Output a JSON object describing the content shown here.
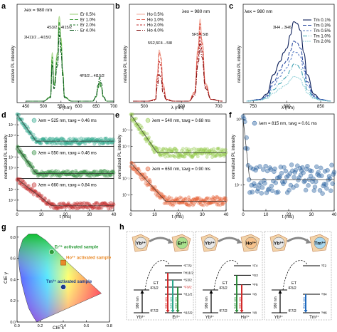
{
  "panels": {
    "a": {
      "letter": "a",
      "label": "λex = 980 nm",
      "ylabel": "relative PL intensity",
      "xlabel": "λ (nm)",
      "xticks": [
        "450",
        "500",
        "550",
        "600",
        "650",
        "700"
      ],
      "legend": [
        "Er 0.5%",
        "Er 1.0%",
        "Er 2.0%",
        "Er 4.0%"
      ],
      "colors": [
        "#9fd27e",
        "#3f9f3a",
        "#1f7a2a",
        "#0f5a20"
      ],
      "annotations": [
        "2H11/2→4I15/2",
        "4S3/2→4I15/2",
        "4F9/2→4I15/2"
      ],
      "chart_data": {
        "type": "line",
        "xlim": [
          425,
          700
        ],
        "x": [
          450,
          500,
          520,
          525,
          530,
          540,
          545,
          550,
          555,
          560,
          580,
          600,
          640,
          650,
          655,
          660,
          665,
          670,
          680,
          700
        ],
        "series": [
          {
            "name": "Er 0.5%",
            "values": [
              0,
              0,
              0.05,
              0.55,
              0.2,
              0.55,
              0.96,
              0.72,
              0.35,
              0.05,
              0,
              0,
              0,
              0.05,
              0.15,
              0.22,
              0.16,
              0.05,
              0,
              0
            ]
          },
          {
            "name": "Er 1.0%",
            "values": [
              0,
              0,
              0.05,
              0.5,
              0.18,
              0.5,
              0.9,
              0.66,
              0.32,
              0.05,
              0,
              0,
              0,
              0.05,
              0.14,
              0.2,
              0.15,
              0.05,
              0,
              0
            ]
          },
          {
            "name": "Er 2.0%",
            "values": [
              0,
              0,
              0.04,
              0.44,
              0.15,
              0.45,
              0.82,
              0.6,
              0.3,
              0.04,
              0,
              0,
              0,
              0.05,
              0.15,
              0.22,
              0.16,
              0.05,
              0,
              0
            ]
          },
          {
            "name": "Er 4.0%",
            "values": [
              0,
              0,
              0.04,
              0.4,
              0.14,
              0.4,
              0.75,
              0.55,
              0.28,
              0.04,
              0,
              0,
              0,
              0.06,
              0.18,
              0.27,
              0.2,
              0.06,
              0,
              0
            ]
          }
        ]
      }
    },
    "b": {
      "letter": "b",
      "label": "λex = 980 nm",
      "ylabel": "relative PL intensity",
      "xlabel": "λ (nm)",
      "xticks": [
        "500",
        "600",
        "700"
      ],
      "legend": [
        "Ho 0.5%",
        "Ho 1.0%",
        "Ho 2.0%",
        "Ho 4.0%"
      ],
      "colors": [
        "#f3b0a2",
        "#e06050",
        "#c02828",
        "#800f0f"
      ],
      "annotations": [
        "5S2,5F4→5I8",
        "5F5→5I8"
      ],
      "chart_data": {
        "type": "line",
        "xlim": [
          460,
          720
        ],
        "x": [
          470,
          510,
          530,
          535,
          540,
          545,
          550,
          560,
          580,
          620,
          635,
          645,
          650,
          655,
          665,
          680,
          710
        ],
        "series": [
          {
            "name": "Ho 0.5%",
            "values": [
              0,
              0,
              0.02,
              0.3,
              0.58,
              0.5,
              0.2,
              0.02,
              0,
              0,
              0.1,
              0.62,
              0.93,
              0.7,
              0.2,
              0.02,
              0
            ]
          },
          {
            "name": "Ho 1.0%",
            "values": [
              0,
              0,
              0.02,
              0.28,
              0.55,
              0.48,
              0.18,
              0.02,
              0,
              0,
              0.1,
              0.58,
              0.88,
              0.66,
              0.18,
              0.02,
              0
            ]
          },
          {
            "name": "Ho 2.0%",
            "values": [
              0,
              0,
              0.02,
              0.22,
              0.45,
              0.4,
              0.15,
              0.02,
              0,
              0,
              0.08,
              0.5,
              0.78,
              0.58,
              0.16,
              0.02,
              0
            ]
          },
          {
            "name": "Ho 4.0%",
            "values": [
              0,
              0,
              0.01,
              0.16,
              0.3,
              0.27,
              0.1,
              0.01,
              0,
              0,
              0.06,
              0.42,
              0.65,
              0.5,
              0.14,
              0.02,
              0
            ]
          }
        ]
      }
    },
    "c": {
      "letter": "c",
      "label": "λex = 980 nm",
      "ylabel": "relative PL intensity",
      "xlabel": "λ (nm)",
      "xticks": [
        "750",
        "800",
        "850"
      ],
      "legend": [
        "Tm 0.1%",
        "Tm 0.3%",
        "Tm 0.5%",
        "Tm 1.0%",
        "Tm 2.0%"
      ],
      "colors": [
        "#0c1f5a",
        "#2a4aa0",
        "#5c7fc6",
        "#3aa0b0",
        "#8fd0d8"
      ],
      "annotations": [
        "3H4→3H6"
      ],
      "chart_data": {
        "type": "line",
        "xlim": [
          735,
          870
        ],
        "x": [
          740,
          760,
          770,
          780,
          790,
          795,
          800,
          805,
          810,
          815,
          820,
          825,
          830,
          840,
          850,
          865
        ],
        "series": [
          {
            "name": "Tm 0.1%",
            "values": [
              0,
              0.02,
              0.08,
              0.3,
              0.45,
              0.55,
              0.6,
              0.75,
              0.9,
              0.88,
              0.8,
              0.55,
              0.3,
              0.08,
              0.02,
              0
            ]
          },
          {
            "name": "Tm 0.3%",
            "values": [
              0,
              0.02,
              0.06,
              0.22,
              0.35,
              0.42,
              0.46,
              0.57,
              0.68,
              0.66,
              0.6,
              0.42,
              0.22,
              0.06,
              0.02,
              0
            ]
          },
          {
            "name": "Tm 0.5%",
            "values": [
              0,
              0.02,
              0.05,
              0.18,
              0.28,
              0.34,
              0.38,
              0.47,
              0.56,
              0.55,
              0.5,
              0.35,
              0.18,
              0.05,
              0.02,
              0
            ]
          },
          {
            "name": "Tm 1.0%",
            "values": [
              0,
              0.01,
              0.04,
              0.13,
              0.2,
              0.25,
              0.28,
              0.35,
              0.42,
              0.41,
              0.37,
              0.26,
              0.13,
              0.04,
              0.01,
              0
            ]
          },
          {
            "name": "Tm 2.0%",
            "values": [
              0,
              0.01,
              0.03,
              0.09,
              0.14,
              0.17,
              0.19,
              0.24,
              0.28,
              0.27,
              0.25,
              0.17,
              0.09,
              0.03,
              0.01,
              0
            ]
          }
        ]
      }
    },
    "d": {
      "letter": "d",
      "ylabel": "normalized PL intensity",
      "xlabel": "t (ms)",
      "xticks": [
        "0",
        "10",
        "20",
        "30",
        "40"
      ],
      "yticks": [
        "10⁻¹",
        "10⁻²",
        "10⁻³"
      ],
      "rows": [
        {
          "legend": "λem = 525 nm, τavg = 0.46 ms",
          "color": "#2aa58a",
          "tau": 0.46,
          "floor": 0.003
        },
        {
          "legend": "λem = 550 nm, τavg = 0.46 ms",
          "color": "#2e8c3c",
          "tau": 0.46,
          "floor": 0.003
        },
        {
          "legend": "λem = 660 nm, τavg = 0.84 ms",
          "color": "#c42a2a",
          "tau": 0.84,
          "floor": 0.003
        }
      ],
      "chart_data": {
        "type": "scatter",
        "xlim": [
          0,
          40
        ],
        "ylim": [
          0.001,
          1
        ],
        "yscale": "log"
      }
    },
    "e": {
      "letter": "e",
      "ylabel": "normalized PL intensity",
      "xlabel": "t (ms)",
      "xticks": [
        "0",
        "10",
        "20",
        "30",
        "40"
      ],
      "yticks": [
        "10⁻¹",
        "10⁻²",
        "10⁻³"
      ],
      "rows": [
        {
          "legend": "λem = 540 nm, τavg = 0.68 ms",
          "color": "#8cc63f",
          "tau": 0.68,
          "floor": 0.004
        },
        {
          "legend": "λem = 650 nm, τavg = 0.90 ms",
          "color": "#e4582a",
          "tau": 0.9,
          "floor": 0.004
        }
      ],
      "chart_data": {
        "type": "scatter",
        "xlim": [
          0,
          40
        ],
        "ylim": [
          0.001,
          1
        ],
        "yscale": "log"
      }
    },
    "f": {
      "letter": "f",
      "ylabel": "normalized PL intensity",
      "xlabel": "t (ms)",
      "xticks": [
        "0",
        "10",
        "20",
        "30",
        "40"
      ],
      "yticks": [
        "10⁰",
        "10⁻¹"
      ],
      "legend": "λem = 815 nm, τavg = 0.61 ms",
      "color": "#1f5a9c",
      "chart_data": {
        "type": "scatter",
        "xlim": [
          0,
          40
        ],
        "ylim": [
          0.04,
          1.2
        ],
        "yscale": "log",
        "tau": 0.61,
        "floor": 0.12
      }
    },
    "g": {
      "letter": "g",
      "xlabel": "CIE x",
      "ylabel": "CIE y",
      "xticks": [
        "0.0",
        "0.2",
        "0.4",
        "0.6",
        "0.8"
      ],
      "yticks": [
        "0.0",
        "0.2",
        "0.4",
        "0.6",
        "0.8"
      ],
      "points": [
        {
          "label": "Er³⁺ activated sample",
          "x": 0.3,
          "y": 0.66,
          "color": "#2e9c3c"
        },
        {
          "label": "Ho³⁺ activated sample",
          "x": 0.4,
          "y": 0.56,
          "color": "#e88a2a"
        },
        {
          "label": "Tm³⁺ activated sample",
          "x": 0.4,
          "y": 0.33,
          "color": "#1f3c8c"
        }
      ],
      "chart_data": {
        "type": "scatter",
        "xlim": [
          0,
          0.8
        ],
        "ylim": [
          0,
          0.9
        ]
      }
    },
    "h": {
      "letter": "h",
      "schemes": [
        {
          "donor": "Yb³⁺",
          "acceptor": "Er³⁺",
          "acceptor_color": "#a8e08c",
          "et": "ET",
          "donor_levels": [
            "²F5/2",
            "²F7/2"
          ],
          "acceptor_levels": [
            "⁴F7/2",
            "²H11/2",
            "⁴S3/2",
            "⁴F9/2",
            "⁴I11/2",
            "⁴I15/2"
          ],
          "excitation": "980 nm",
          "emissions": [
            {
              "label": "660 nm",
              "color": "#d22a2a"
            },
            {
              "label": "525 nm",
              "color": "#2aa58a"
            },
            {
              "label": "550 nm",
              "color": "#2e8c3c"
            }
          ],
          "bottom_labels": [
            "Yb³⁺",
            "Er³⁺"
          ]
        },
        {
          "donor": "Yb³⁺",
          "acceptor": "Ho³⁺",
          "acceptor_color": "#f6c28c",
          "et": "ET",
          "donor_levels": [
            "²F5/2",
            "²F7/2"
          ],
          "acceptor_levels": [
            "⁵F4",
            "⁵S2",
            "⁵F5",
            "⁵I6",
            "⁵I8"
          ],
          "excitation": "980 nm",
          "emissions": [
            {
              "label": "540 nm",
              "color": "#2e8c3c"
            },
            {
              "label": "650 nm",
              "color": "#d22a2a"
            }
          ],
          "bottom_labels": [
            "Yb³⁺",
            "Ho³⁺"
          ]
        },
        {
          "donor": "Yb³⁺",
          "acceptor": "Tm³⁺",
          "acceptor_color": "#a8d8f0",
          "et": "ET",
          "donor_levels": [
            "²F5/2",
            "²F7/2"
          ],
          "acceptor_levels": [
            "³F2",
            "³H4",
            "³H6"
          ],
          "excitation": "980 nm",
          "emissions": [
            {
              "label": "815 nm",
              "color": "#1f6abf"
            }
          ],
          "bottom_labels": [
            "Yb³⁺",
            "Tm³⁺"
          ]
        }
      ]
    }
  }
}
